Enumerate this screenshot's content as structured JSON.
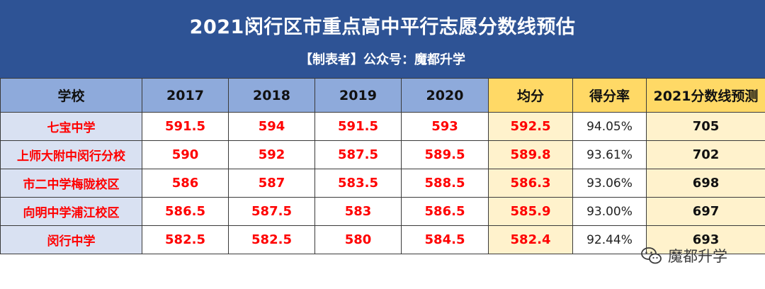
{
  "header": {
    "title": "2021闵行区市重点高中平行志愿分数线预估",
    "subtitle": "【制表者】公众号：魔都升学"
  },
  "table": {
    "columns": [
      "学校",
      "2017",
      "2018",
      "2019",
      "2020",
      "均分",
      "得分率",
      "2021分数线预测"
    ],
    "rows": [
      [
        "七宝中学",
        "591.5",
        "594",
        "591.5",
        "593",
        "592.5",
        "94.05%",
        "705"
      ],
      [
        "上师大附中闵行分校",
        "590",
        "592",
        "587.5",
        "589.5",
        "589.8",
        "93.61%",
        "702"
      ],
      [
        "市二中学梅陇校区",
        "586",
        "587",
        "583.5",
        "588.5",
        "586.3",
        "93.06%",
        "698"
      ],
      [
        "向明中学浦江校区",
        "586.5",
        "587.5",
        "583",
        "586.5",
        "585.9",
        "93.00%",
        "697"
      ],
      [
        "闵行中学",
        "582.5",
        "582.5",
        "580",
        "584.5",
        "582.4",
        "92.44%",
        "693"
      ]
    ]
  },
  "watermark": {
    "label": "魔都升学",
    "icon": "wechat-icon"
  },
  "colors": {
    "banner": "#2e5395",
    "header_row": "#8eaadb",
    "header_highlight": "#ffd966",
    "highlight_cell": "#fff2cc",
    "school_cell": "#d9e1f2",
    "value_text": "#ff0000"
  }
}
